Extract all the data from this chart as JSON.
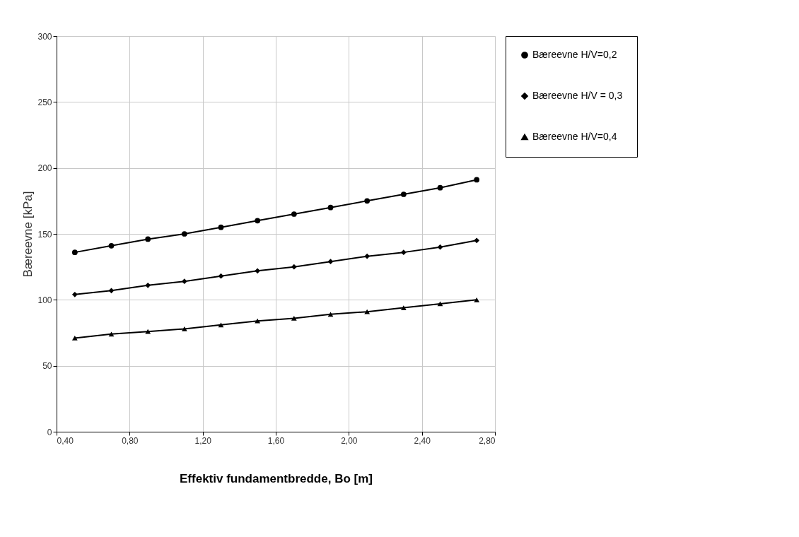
{
  "chart_data": {
    "type": "line",
    "xlabel": "Effektiv fundamentbredde, Bo [m]",
    "ylabel": "Bæreevne [kPa]",
    "x": [
      0.5,
      0.7,
      0.9,
      1.1,
      1.3,
      1.5,
      1.7,
      1.9,
      2.1,
      2.3,
      2.5,
      2.7
    ],
    "series": [
      {
        "name": "Bæreevne H/V=0,2",
        "color": "#000000",
        "marker": "circle",
        "values": [
          136,
          141,
          146,
          150,
          155,
          160,
          165,
          170,
          175,
          180,
          185,
          191
        ]
      },
      {
        "name": "Bæreevne H/V = 0,3",
        "color": "#000000",
        "marker": "diamond",
        "values": [
          104,
          107,
          111,
          114,
          118,
          122,
          125,
          129,
          133,
          136,
          140,
          145
        ]
      },
      {
        "name": "Bæreevne H/V=0,4",
        "color": "#000000",
        "marker": "triangle",
        "values": [
          71,
          74,
          76,
          78,
          81,
          84,
          86,
          89,
          91,
          94,
          97,
          100
        ]
      }
    ],
    "xlim": [
      0.4,
      2.8
    ],
    "xticks": [
      {
        "value": 0.4,
        "label": "0,40"
      },
      {
        "value": 0.8,
        "label": "0,80"
      },
      {
        "value": 1.2,
        "label": "1,20"
      },
      {
        "value": 1.6,
        "label": "1,60"
      },
      {
        "value": 2.0,
        "label": "2,00"
      },
      {
        "value": 2.4,
        "label": "2,40"
      },
      {
        "value": 2.8,
        "label": "2,80"
      }
    ],
    "ylim": [
      0,
      300
    ],
    "yticks": [
      0,
      50,
      100,
      150,
      200,
      250,
      300
    ],
    "grid": true,
    "legend": "right",
    "line_style": "solid"
  }
}
